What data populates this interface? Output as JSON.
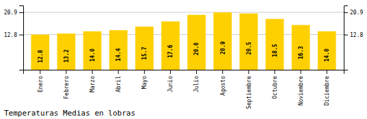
{
  "chart_data": {
    "type": "bar",
    "title": "Temperaturas Medias en lobras",
    "categories": [
      "Enero",
      "Febrero",
      "Marzo",
      "Abril",
      "Mayo",
      "Junio",
      "Julio",
      "Agosto",
      "Septiembre",
      "Octubre",
      "Noviembre",
      "Diciembre"
    ],
    "values": [
      12.8,
      13.2,
      14.0,
      14.4,
      15.7,
      17.6,
      20.0,
      20.9,
      20.5,
      18.5,
      16.3,
      14.0
    ],
    "value_labels": [
      "12.8",
      "13.2",
      "14.0",
      "14.4",
      "15.7",
      "17.6",
      "20.0",
      "20.9",
      "20.5",
      "18.5",
      "16.3",
      "14.0"
    ],
    "color": "#FFD000",
    "ylim": [
      0,
      23.408
    ],
    "yticks": [
      12.8,
      20.9
    ],
    "grid": true,
    "data_labels": true
  }
}
